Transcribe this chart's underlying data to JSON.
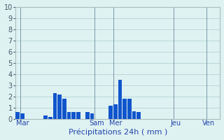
{
  "title": "",
  "xlabel": "Précipitations 24h ( mm )",
  "ylabel": "",
  "background_color": "#dff2f2",
  "bar_color": "#1155cc",
  "ylim": [
    0,
    10
  ],
  "yticks": [
    0,
    1,
    2,
    3,
    4,
    5,
    6,
    7,
    8,
    9,
    10
  ],
  "day_labels": [
    "Mar",
    "Sam",
    "Mer",
    "Jeu",
    "Ven"
  ],
  "day_tick_positions": [
    1,
    17,
    21,
    34,
    41
  ],
  "day_vline_positions": [
    0.5,
    16.5,
    20.5,
    33.5,
    40.5
  ],
  "num_bars": 44,
  "bar_values": [
    0.6,
    0.5,
    0,
    0,
    0,
    0,
    0.3,
    0.2,
    2.3,
    2.2,
    1.8,
    0.6,
    0.6,
    0.6,
    0,
    0.6,
    0.5,
    0,
    0,
    0,
    1.2,
    1.3,
    3.5,
    1.8,
    1.8,
    0.7,
    0.6,
    0.0,
    0,
    0,
    0,
    0,
    0,
    0,
    0,
    0,
    0,
    0,
    0,
    0,
    0,
    0,
    0,
    0
  ],
  "grid_color": "#aacccc",
  "vline_color": "#7799aa",
  "spine_color": "#aabbbb",
  "xlabel_color": "#2244aa",
  "xtick_color": "#2244aa",
  "ytick_color": "#445566",
  "xlabel_fontsize": 8,
  "xtick_fontsize": 7,
  "ytick_fontsize": 7
}
